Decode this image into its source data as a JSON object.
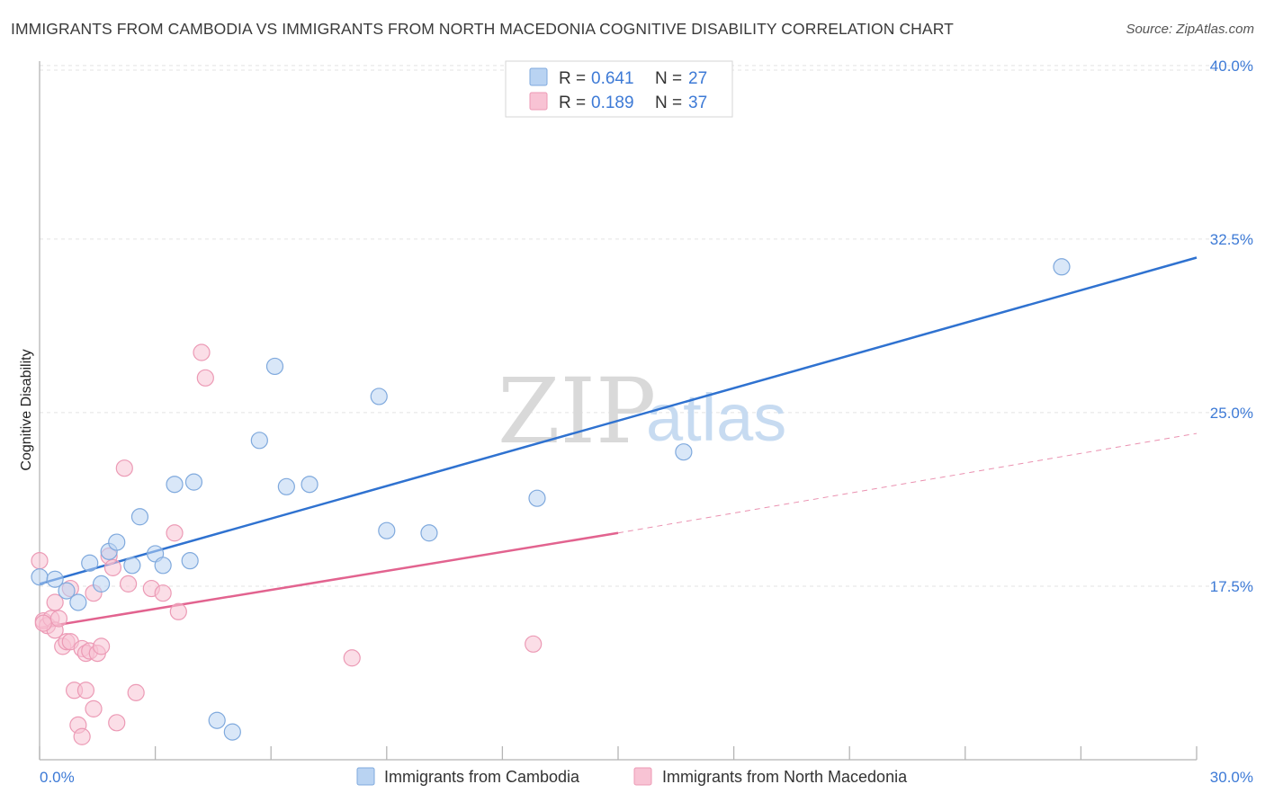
{
  "header": {
    "title": "IMMIGRANTS FROM CAMBODIA VS IMMIGRANTS FROM NORTH MACEDONIA COGNITIVE DISABILITY CORRELATION CHART",
    "source": "Source: ZipAtlas.com"
  },
  "watermark": {
    "zip": "ZIP",
    "atlas": "atlas"
  },
  "legend_top": {
    "rows": [
      {
        "r_label": "R =",
        "r_value": "0.641",
        "n_label": "N =",
        "n_value": "27"
      },
      {
        "r_label": "R =",
        "r_value": "0.189",
        "n_label": "N =",
        "n_value": "37"
      }
    ]
  },
  "colors": {
    "cambodia_fill": "#b9d3f2",
    "cambodia_stroke": "#7fa9dd",
    "cambodia_line": "#2f72d0",
    "macedonia_fill": "#f8c3d4",
    "macedonia_stroke": "#ec9ab5",
    "macedonia_line": "#e2638f",
    "tick_text": "#3d7ad6",
    "grid": "#e3e3e3"
  },
  "chart_data": {
    "type": "scatter",
    "title": "IMMIGRANTS FROM CAMBODIA VS IMMIGRANTS FROM NORTH MACEDONIA COGNITIVE DISABILITY CORRELATION CHART",
    "xlabel": "",
    "ylabel": "Cognitive Disability",
    "xlim": [
      0,
      30
    ],
    "ylim": [
      10,
      40.5
    ],
    "x_tick_labels": [
      "0.0%",
      "30.0%"
    ],
    "y_ticks": [
      17.5,
      25.0,
      32.5,
      40.0
    ],
    "y_tick_labels": [
      "17.5%",
      "25.0%",
      "32.5%",
      "40.0%"
    ],
    "grid": true,
    "legend_position": "top-center",
    "series": [
      {
        "name": "Immigrants from Cambodia",
        "r": 0.641,
        "n": 27,
        "trend": {
          "x": [
            0,
            30
          ],
          "y": [
            17.6,
            31.7
          ]
        },
        "points": [
          [
            0.0,
            17.9
          ],
          [
            0.4,
            17.8
          ],
          [
            0.7,
            17.3
          ],
          [
            1.0,
            16.8
          ],
          [
            1.3,
            18.5
          ],
          [
            1.6,
            17.6
          ],
          [
            1.8,
            19.0
          ],
          [
            2.0,
            19.4
          ],
          [
            2.4,
            18.4
          ],
          [
            2.6,
            20.5
          ],
          [
            3.0,
            18.9
          ],
          [
            3.2,
            18.4
          ],
          [
            3.5,
            21.9
          ],
          [
            3.9,
            18.6
          ],
          [
            4.0,
            22.0
          ],
          [
            4.6,
            11.7
          ],
          [
            5.0,
            11.2
          ],
          [
            5.7,
            23.8
          ],
          [
            6.1,
            27.0
          ],
          [
            6.4,
            21.8
          ],
          [
            7.0,
            21.9
          ],
          [
            8.8,
            25.7
          ],
          [
            9.0,
            19.9
          ],
          [
            10.1,
            19.8
          ],
          [
            12.9,
            21.3
          ],
          [
            16.7,
            23.3
          ],
          [
            26.5,
            31.3
          ]
        ]
      },
      {
        "name": "Immigrants from North Macedonia",
        "r": 0.189,
        "n": 37,
        "trend_solid": {
          "x": [
            0,
            15
          ],
          "y": [
            15.7,
            19.8
          ]
        },
        "trend_dashed": {
          "x": [
            15,
            30
          ],
          "y": [
            19.8,
            24.1
          ]
        },
        "points": [
          [
            0.0,
            18.6
          ],
          [
            0.1,
            16.0
          ],
          [
            0.2,
            15.8
          ],
          [
            0.3,
            16.1
          ],
          [
            0.4,
            16.8
          ],
          [
            0.4,
            15.6
          ],
          [
            0.5,
            16.1
          ],
          [
            0.6,
            14.9
          ],
          [
            0.7,
            15.1
          ],
          [
            0.8,
            17.4
          ],
          [
            0.8,
            15.1
          ],
          [
            0.9,
            13.0
          ],
          [
            1.0,
            11.5
          ],
          [
            1.1,
            11.0
          ],
          [
            1.1,
            14.8
          ],
          [
            1.2,
            13.0
          ],
          [
            1.2,
            14.6
          ],
          [
            1.3,
            14.7
          ],
          [
            1.4,
            12.2
          ],
          [
            1.4,
            17.2
          ],
          [
            1.5,
            14.6
          ],
          [
            1.6,
            14.9
          ],
          [
            1.8,
            18.8
          ],
          [
            1.9,
            18.3
          ],
          [
            2.0,
            11.6
          ],
          [
            2.2,
            22.6
          ],
          [
            2.3,
            17.6
          ],
          [
            2.5,
            12.9
          ],
          [
            2.9,
            17.4
          ],
          [
            3.2,
            17.2
          ],
          [
            3.5,
            19.8
          ],
          [
            3.6,
            16.4
          ],
          [
            4.2,
            27.6
          ],
          [
            4.3,
            26.5
          ],
          [
            8.1,
            14.4
          ],
          [
            12.8,
            15.0
          ],
          [
            0.1,
            15.9
          ]
        ]
      }
    ]
  },
  "legend_bottom": {
    "items": [
      "Immigrants from Cambodia",
      "Immigrants from North Macedonia"
    ]
  }
}
